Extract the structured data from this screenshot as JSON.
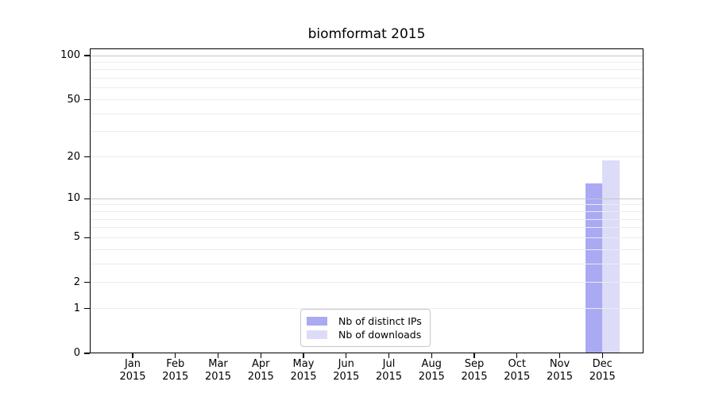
{
  "chart_data": {
    "type": "bar",
    "title": "biomformat 2015",
    "categories": [
      "Jan",
      "Feb",
      "Mar",
      "Apr",
      "May",
      "Jun",
      "Jul",
      "Aug",
      "Sep",
      "Oct",
      "Nov",
      "Dec"
    ],
    "xtick_year": "2015",
    "series": [
      {
        "name": "Nb of distinct IPs",
        "color": "#a9a9f4",
        "values": [
          0,
          0,
          0,
          0,
          0,
          0,
          0,
          0,
          0,
          0,
          0,
          13
        ]
      },
      {
        "name": "Nb of downloads",
        "color": "#dcdcf8",
        "values": [
          0,
          0,
          0,
          0,
          0,
          0,
          0,
          0,
          0,
          0,
          0,
          19
        ]
      }
    ],
    "yticks": [
      0,
      1,
      2,
      5,
      10,
      20,
      50,
      100
    ],
    "gridlines_minor": [
      1,
      2,
      3,
      4,
      5,
      6,
      7,
      8,
      9,
      20,
      30,
      40,
      50,
      60,
      70,
      80,
      90
    ],
    "gridlines_major": [
      10,
      100
    ],
    "scale": "log1p",
    "ylim": [
      0,
      112
    ],
    "xlabel": "",
    "ylabel": "",
    "grid": "horizontal",
    "legend_position": "lower-center",
    "colors": {
      "axis": "#000000",
      "grid_major": "#c6c6c6",
      "grid_minor": "#ececec",
      "legend_border": "#c8c8c8",
      "background": "#ffffff",
      "text": "#000000"
    }
  }
}
